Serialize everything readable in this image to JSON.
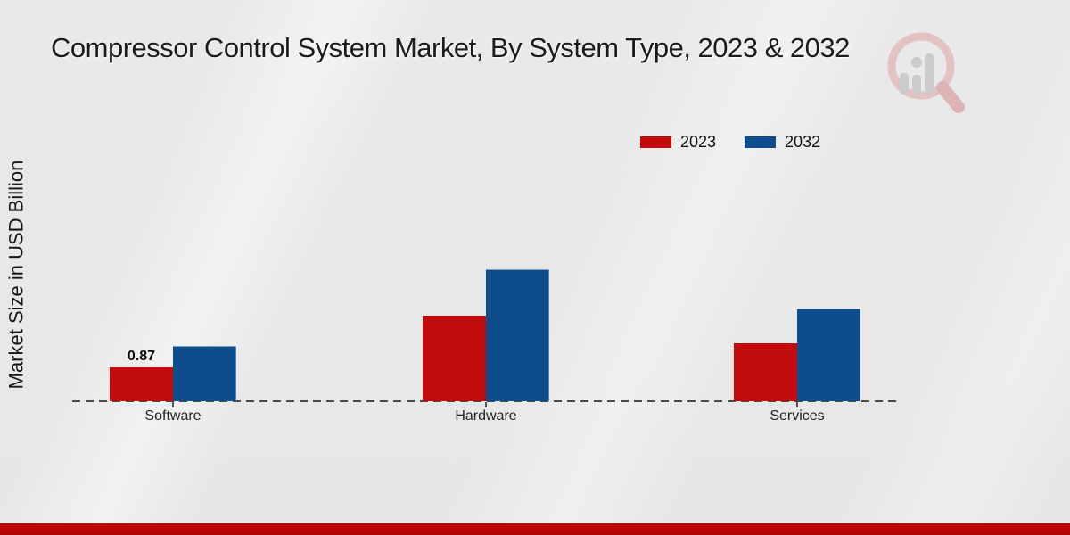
{
  "header": {
    "title": "Compressor Control System Market, By System Type, 2023 & 2032"
  },
  "watermark": {
    "name": "magnifier-bar-chart-logo"
  },
  "chart_data": {
    "type": "bar",
    "title": "Compressor Control System Market, By System Type, 2023 & 2032",
    "xlabel": "",
    "ylabel": "Market Size in USD Billion",
    "categories": [
      "Software",
      "Hardware",
      "Services"
    ],
    "series": [
      {
        "name": "2023",
        "color": "#c20b0b",
        "values": [
          0.87,
          2.2,
          1.49
        ]
      },
      {
        "name": "2032",
        "color": "#0e4d8b",
        "values": [
          1.42,
          3.39,
          2.38
        ]
      }
    ],
    "annotations": [
      {
        "category": "Software",
        "series": "2023",
        "text": "0.87"
      }
    ],
    "ylim": [
      0,
      3.6
    ],
    "grid": false,
    "legend_position": "top-right",
    "baseline_style": "dashed",
    "colors": {
      "accent_red": "#c20b0b",
      "accent_blue": "#0e4d8b",
      "footer_band": "#bb0505",
      "background": "#e9e9e9"
    }
  }
}
